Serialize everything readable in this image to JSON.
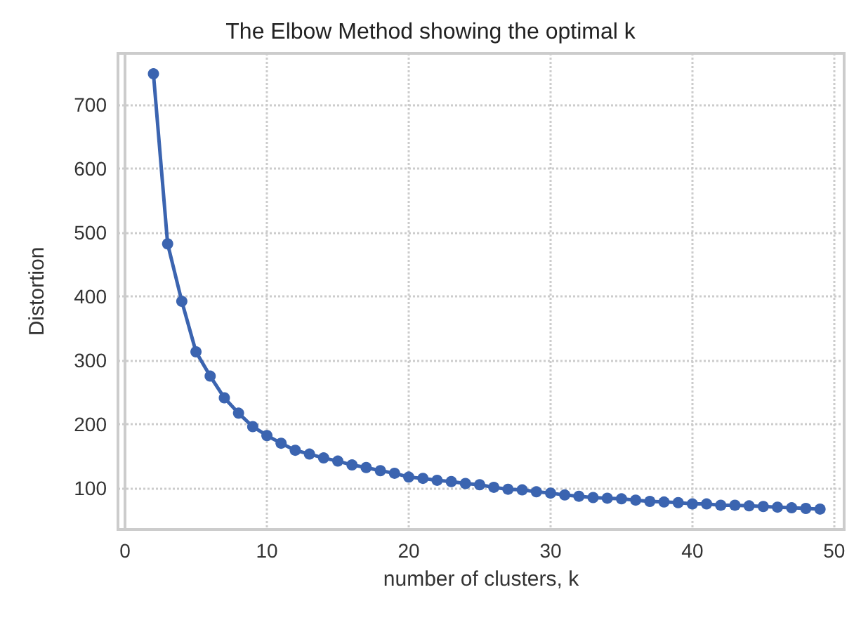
{
  "chart_data": {
    "type": "line",
    "title": "The Elbow Method showing the optimal k",
    "xlabel": "number of clusters, k",
    "ylabel": "Distortion",
    "x": [
      2,
      3,
      4,
      5,
      6,
      7,
      8,
      9,
      10,
      11,
      12,
      13,
      14,
      15,
      16,
      17,
      18,
      19,
      20,
      21,
      22,
      23,
      24,
      25,
      26,
      27,
      28,
      29,
      30,
      31,
      32,
      33,
      34,
      35,
      36,
      37,
      38,
      39,
      40,
      41,
      42,
      43,
      44,
      45,
      46,
      47,
      48,
      49
    ],
    "series": [
      {
        "color": "#3b64b0",
        "values": [
          748,
          482,
          392,
          313,
          275,
          241,
          217,
          196,
          182,
          170,
          159,
          153,
          147,
          142,
          136,
          132,
          127,
          123,
          117,
          115,
          112,
          110,
          107,
          105,
          101,
          98,
          97,
          94,
          92,
          89,
          87,
          85,
          84,
          83,
          81,
          79,
          78,
          77,
          75,
          75,
          73,
          73,
          72,
          71,
          70,
          69,
          68,
          67
        ]
      }
    ],
    "xlim": [
      -0.5,
      50.7
    ],
    "ylim": [
      35,
      780
    ],
    "xticks": [
      0,
      10,
      20,
      30,
      40,
      50
    ],
    "yticks": [
      100,
      200,
      300,
      400,
      500,
      600,
      700
    ],
    "grid": true,
    "marker": "circle",
    "line_style": "solid"
  }
}
